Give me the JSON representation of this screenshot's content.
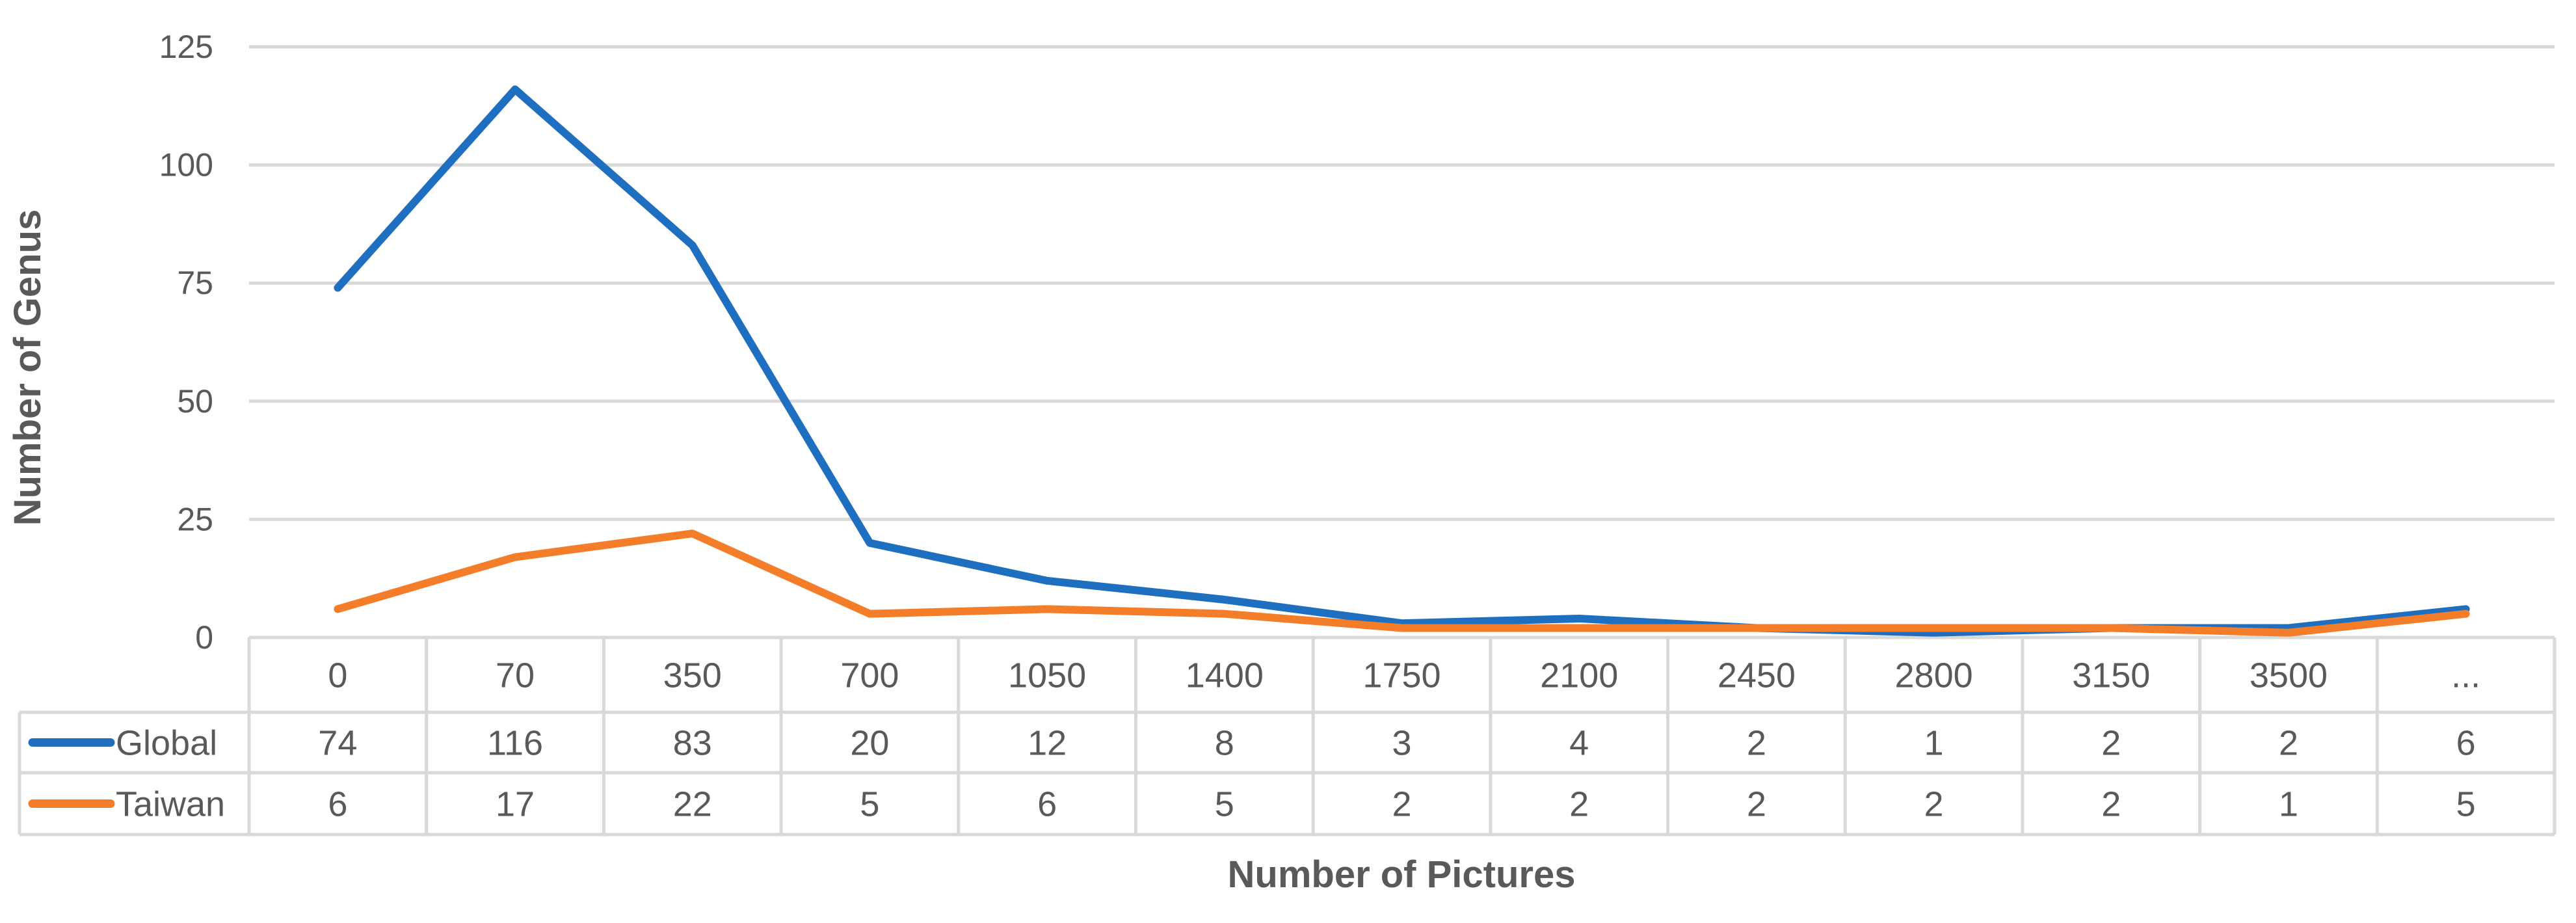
{
  "chart_data": {
    "type": "line",
    "xlabel": "Number of Pictures",
    "ylabel": "Number of Genus",
    "ylim": [
      0,
      125
    ],
    "yticks": [
      0,
      25,
      50,
      75,
      100,
      125
    ],
    "grid": true,
    "legend_placement": "data-table-left",
    "categories": [
      "0",
      "70",
      "350",
      "700",
      "1050",
      "1400",
      "1750",
      "2100",
      "2450",
      "2800",
      "3150",
      "3500",
      "..."
    ],
    "series": [
      {
        "name": "Global",
        "color": "#1f6fc0",
        "values": [
          74,
          116,
          83,
          20,
          12,
          8,
          3,
          4,
          2,
          1,
          2,
          2,
          6
        ]
      },
      {
        "name": "Taiwan",
        "color": "#f47d2a",
        "values": [
          6,
          17,
          22,
          5,
          6,
          5,
          2,
          2,
          2,
          2,
          2,
          1,
          5
        ]
      }
    ]
  }
}
